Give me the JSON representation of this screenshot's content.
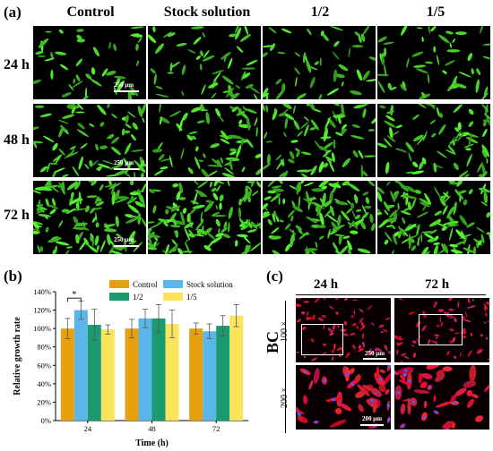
{
  "panel_a": {
    "label": "(a)",
    "columns": [
      "Control",
      "Stock solution",
      "1/2",
      "1/5"
    ],
    "rows": [
      "24 h",
      "48 h",
      "72 h"
    ],
    "scale_bar": "250 μm"
  },
  "panel_b": {
    "label": "(b)",
    "significance": "*"
  },
  "panel_c": {
    "label": "(c)",
    "columns": [
      "24 h",
      "72 h"
    ],
    "side_label": "BC",
    "rows": [
      "100 ×",
      "200 ×"
    ],
    "scale_bars": [
      "250 μm",
      "200 μm"
    ]
  },
  "colors": {
    "control": "#E69F0D",
    "stock": "#5BB6E8",
    "half": "#1A9A6E",
    "fifth": "#F9E45B"
  },
  "chart_data": {
    "type": "bar",
    "categories": [
      "24",
      "48",
      "72"
    ],
    "series": [
      {
        "name": "Control",
        "values": [
          100,
          100,
          100
        ],
        "errors": [
          11,
          10,
          6
        ]
      },
      {
        "name": "Stock solution",
        "values": [
          120,
          111,
          97
        ],
        "errors": [
          10,
          10,
          8
        ]
      },
      {
        "name": "1/2",
        "values": [
          104,
          111,
          103
        ],
        "errors": [
          17,
          15,
          11
        ]
      },
      {
        "name": "1/5",
        "values": [
          99,
          105,
          114
        ],
        "errors": [
          5,
          15,
          12
        ]
      }
    ],
    "xlabel": "Time (h)",
    "ylabel": "Relative growth rate",
    "ylim": [
      0,
      140
    ],
    "yticks": [
      "0%",
      "20%",
      "40%",
      "60%",
      "80%",
      "100%",
      "120%",
      "140%"
    ],
    "legend_position": "top",
    "grid": false
  }
}
